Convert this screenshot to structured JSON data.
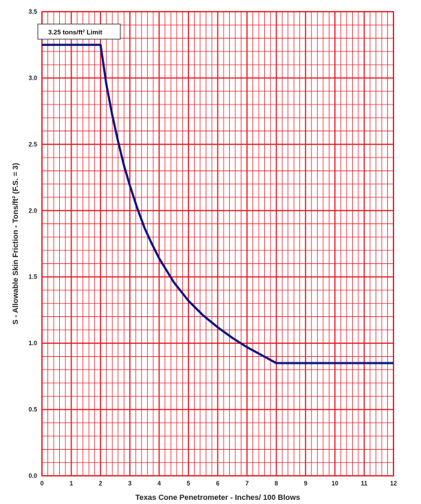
{
  "chart_data": {
    "type": "line",
    "xlabel": "Texas Cone Penetrometer - Inches/ 100 Blows",
    "ylabel": "S - Allowable Skin Friction - Tons/ft² (F.S. = 3)",
    "xlim": [
      0,
      12
    ],
    "ylim": [
      0,
      3.5
    ],
    "x_ticks": [
      0,
      1,
      2,
      3,
      4,
      5,
      6,
      7,
      8,
      9,
      10,
      11,
      12
    ],
    "x_tick_labels": [
      "0",
      "1",
      "2",
      "3",
      "4",
      "5",
      "6",
      "7",
      "8",
      "9",
      "10",
      "11",
      "12"
    ],
    "y_ticks": [
      0,
      0.5,
      1.0,
      1.5,
      2.0,
      2.5,
      3.0,
      3.5
    ],
    "y_tick_labels": [
      "0.0",
      "0.5",
      "1.0",
      "1.5",
      "2.0",
      "2.5",
      "3.0",
      "3.5"
    ],
    "grid": true,
    "grid_color": "#e8121c",
    "line_color": "#0d1480",
    "series": [
      {
        "x": [
          0,
          2,
          2.2,
          2.4,
          2.6,
          2.8,
          3,
          3.25,
          3.5,
          3.75,
          4,
          4.5,
          5,
          5.5,
          6,
          6.5,
          7,
          7.5,
          8,
          12
        ],
        "y": [
          3.25,
          3.25,
          2.95,
          2.72,
          2.52,
          2.34,
          2.19,
          2.02,
          1.87,
          1.75,
          1.64,
          1.46,
          1.32,
          1.21,
          1.12,
          1.04,
          0.97,
          0.91,
          0.85,
          0.85
        ]
      }
    ],
    "annotations": [
      {
        "text": "3.25 tons/ft² Limit"
      }
    ]
  }
}
